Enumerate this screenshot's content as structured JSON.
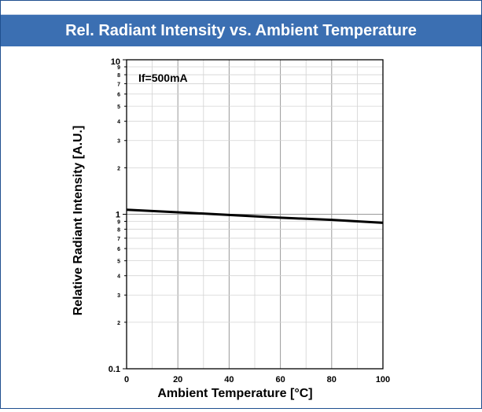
{
  "header": {
    "title": "Rel. Radiant Intensity vs. Ambient Temperature"
  },
  "chart_data": {
    "type": "line",
    "xlabel": "Ambient Temperature [°C]",
    "ylabel": "Relative Radiant Intensity [A.U.]",
    "xlim": [
      0,
      100
    ],
    "ylim": [
      0.1,
      10
    ],
    "yscale": "log",
    "grid": true,
    "x_ticks": [
      0,
      20,
      40,
      60,
      80,
      100
    ],
    "x_tick_labels": [
      "0",
      "20",
      "40",
      "60",
      "80",
      "100"
    ],
    "y_major_ticks": [
      0.1,
      1,
      10
    ],
    "y_major_labels": [
      "0.1",
      "1",
      "10"
    ],
    "y_minor_ticks": [
      2,
      3,
      4,
      5,
      6,
      7,
      8,
      9,
      20,
      30,
      40,
      50,
      60,
      70,
      80,
      90
    ],
    "y_minor_labels": [
      "2",
      "3",
      "4",
      "5",
      "6",
      "7",
      "8",
      "9",
      "2",
      "3",
      "4",
      "5",
      "6",
      "7",
      "8",
      "9"
    ],
    "annotation": "If=500mA",
    "series": [
      {
        "color": "#000000",
        "x": [
          0,
          20,
          40,
          60,
          80,
          100
        ],
        "y": [
          1.07,
          1.03,
          0.99,
          0.95,
          0.92,
          0.88
        ]
      }
    ]
  }
}
